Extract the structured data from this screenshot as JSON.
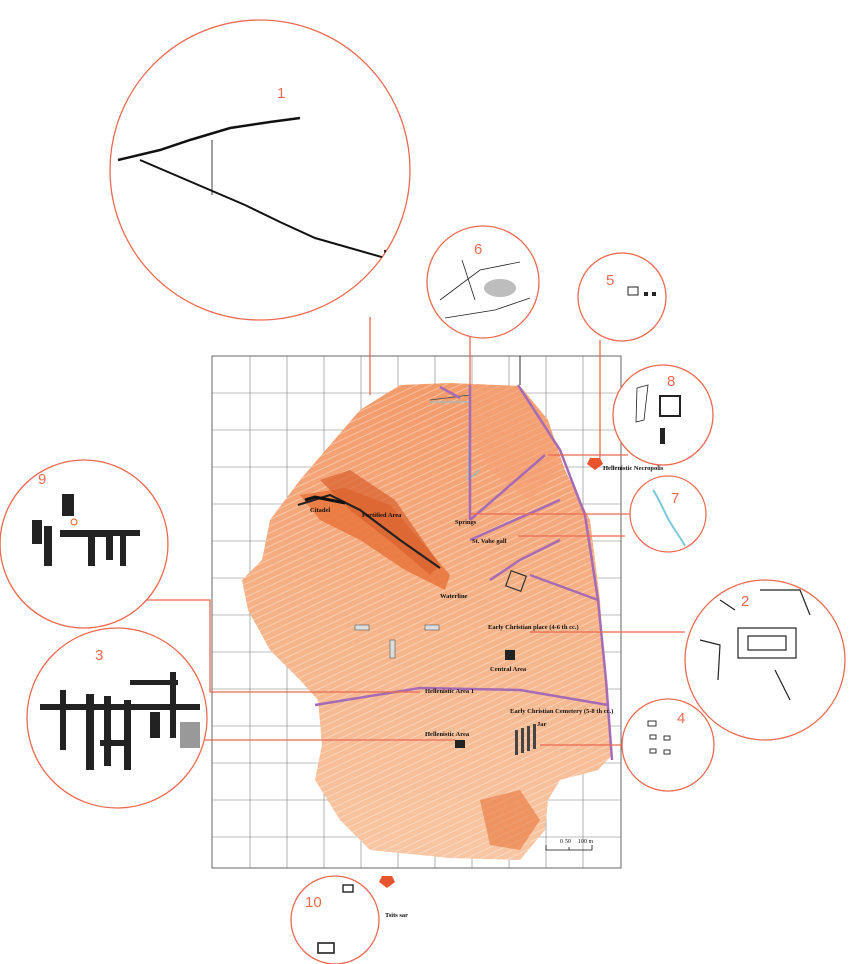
{
  "colors": {
    "callout": "#ea6a52",
    "terrain_dark": "#e8743b",
    "terrain_light": "#f7c4a2",
    "road": "#a66bb5",
    "spring_stream": "#7cc7da",
    "grid": "#7c7c7c"
  },
  "site_labels": [
    "Citadel",
    "Fortified Area",
    "Springs",
    "Hellenistic Necropolis",
    "St. Vahe gall",
    "Waterline",
    "Early Christian place (4-6 th cc.)",
    "Central Area",
    "Hellenistic Area 1",
    "Early Christian Cemetery (5-8 th cc.)",
    "Jar",
    "Hellenistic Area",
    "Tsits sar"
  ],
  "callouts": [
    {
      "number": "1",
      "content": "citadel-wall-plan"
    },
    {
      "number": "2",
      "content": "early-christian-complex-plan"
    },
    {
      "number": "3",
      "content": "hellenistic-area-plan"
    },
    {
      "number": "4",
      "content": "cemetery-graves-plan"
    },
    {
      "number": "5",
      "content": "necropolis-tombs-plan"
    },
    {
      "number": "6",
      "content": "waterline-plan"
    },
    {
      "number": "7",
      "content": "spring-stream"
    },
    {
      "number": "8",
      "content": "necropolis-structures-plan"
    },
    {
      "number": "9",
      "content": "hellenistic-area-1-plan"
    },
    {
      "number": "10",
      "content": "tsits-sar-plan"
    }
  ],
  "scale_bar": {
    "labels": [
      "0",
      "50",
      "100 m"
    ]
  },
  "north_arrow_icons": [
    "north-arrow-icon-necropolis",
    "north-arrow-icon-tsits-sar"
  ]
}
